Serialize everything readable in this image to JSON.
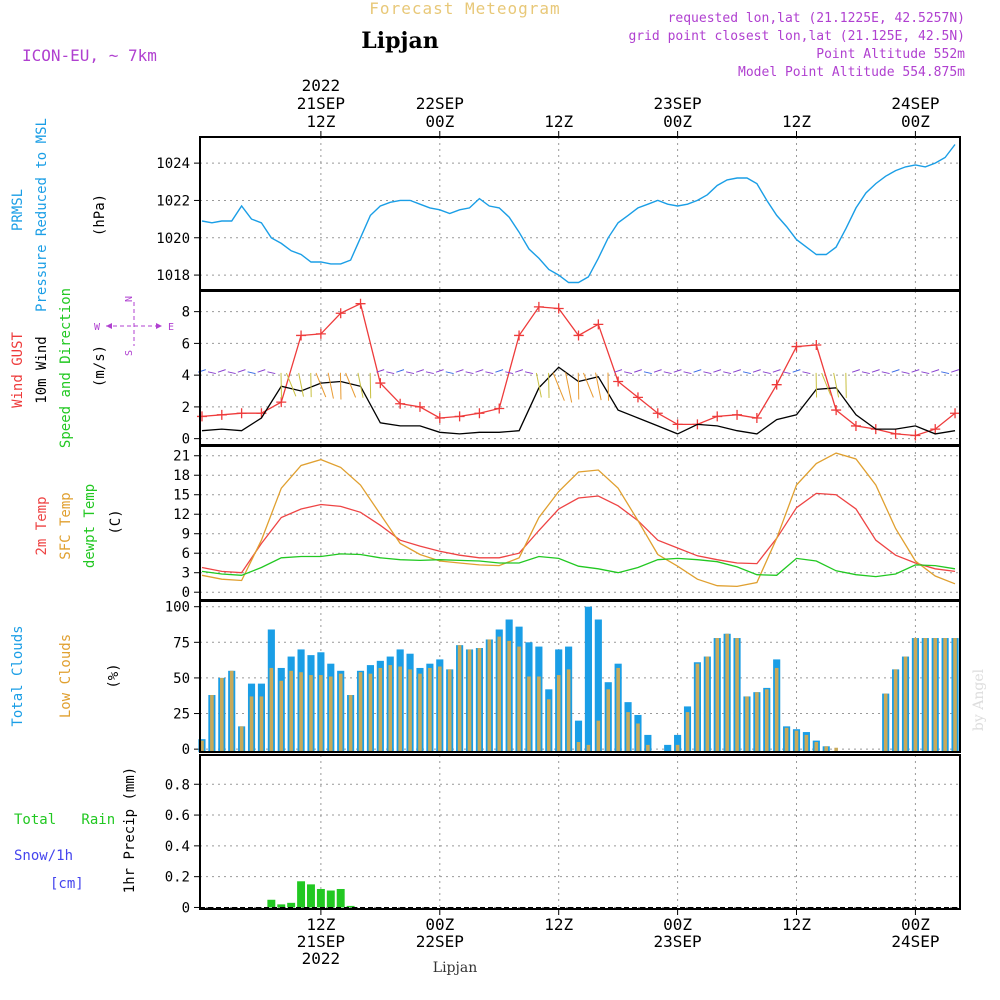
{
  "header": {
    "title": "Forecast Meteogram",
    "location": "Lipjan",
    "model": "ICON-EU,  ~ 7km",
    "requested": "requested lon,lat (21.1225E, 42.5257N)",
    "gridpoint": "grid point closest lon,lat (21.125E, 42.5N)",
    "altitude": "Point Altitude 552m",
    "model_altitude": "Model Point Altitude 554.875m",
    "footer_location": "Lipjan",
    "credit": "by Angel"
  },
  "colors": {
    "pressure": "#1a9ee6",
    "gust": "#ee3b3b",
    "wind": "#000000",
    "temp2m": "#ee4444",
    "sfc": "#e0a030",
    "dewpt": "#22c822",
    "total_clouds": "#1a9ee6",
    "low_clouds": "#c8aa5a",
    "rain": "#22c822",
    "snow": "#4444ee",
    "title": "#e8c878",
    "info": "#b040d0"
  },
  "time_axis": {
    "top": [
      {
        "t": 12,
        "lines": [
          "2022",
          "21SEP",
          "12Z"
        ]
      },
      {
        "t": 24,
        "lines": [
          "22SEP",
          "00Z"
        ]
      },
      {
        "t": 36,
        "lines": [
          "12Z"
        ]
      },
      {
        "t": 48,
        "lines": [
          "23SEP",
          "00Z"
        ]
      },
      {
        "t": 60,
        "lines": [
          "12Z"
        ]
      },
      {
        "t": 72,
        "lines": [
          "24SEP",
          "00Z"
        ]
      }
    ],
    "bottom": [
      {
        "t": 12,
        "lines": [
          "12Z",
          "21SEP",
          "2022"
        ]
      },
      {
        "t": 24,
        "lines": [
          "00Z",
          "22SEP"
        ]
      },
      {
        "t": 36,
        "lines": [
          "12Z"
        ]
      },
      {
        "t": 48,
        "lines": [
          "00Z",
          "23SEP"
        ]
      },
      {
        "t": 60,
        "lines": [
          "12Z"
        ]
      },
      {
        "t": 72,
        "lines": [
          "00Z",
          "24SEP"
        ]
      }
    ]
  },
  "panel_labels": {
    "pressure": {
      "name1": "PRMSL",
      "name2": "Pressure Reduced to MSL",
      "unit": "(hPa)"
    },
    "wind": {
      "gust": "Wind GUST",
      "wind": "10m Wind",
      "dir": "Speed and Direction",
      "unit": "(m/s)",
      "compass_n": "N",
      "compass_s": "S",
      "compass_w": "W",
      "compass_e": "E"
    },
    "temp": {
      "t2m": "2m Temp",
      "sfc": "SFC Temp",
      "dew": "dewpt Temp",
      "unit": "(C)"
    },
    "clouds": {
      "total": "Total Clouds",
      "low": "Low Clouds",
      "unit": "(%)"
    },
    "precip": {
      "rain": "Total   Rain",
      "snow": "Snow/1h",
      "snow_unit": "[cm]",
      "axis": "1hr Precip (mm)"
    }
  },
  "chart_data": [
    {
      "type": "line",
      "panel": "pressure",
      "ylim": [
        1017.2,
        1025.4
      ],
      "yticks": [
        1018,
        1020,
        1022,
        1024
      ],
      "grid": true,
      "x": [
        0,
        1,
        2,
        3,
        4,
        5,
        6,
        7,
        8,
        9,
        10,
        11,
        12,
        13,
        14,
        15,
        16,
        17,
        18,
        19,
        20,
        21,
        22,
        23,
        24,
        25,
        26,
        27,
        28,
        29,
        30,
        31,
        32,
        33,
        34,
        35,
        36,
        37,
        38,
        39,
        40,
        41,
        42,
        43,
        44,
        45,
        46,
        47,
        48,
        49,
        50,
        51,
        52,
        53,
        54,
        55,
        56,
        57,
        58,
        59,
        60,
        61,
        62,
        63,
        64,
        65,
        66,
        67,
        68,
        69,
        70,
        71,
        72,
        73,
        74,
        75,
        76
      ],
      "series": [
        {
          "values": [
            1020.9,
            1020.8,
            1020.9,
            1020.9,
            1021.7,
            1021.0,
            1020.8,
            1020.0,
            1019.7,
            1019.3,
            1019.1,
            1018.7,
            1018.7,
            1018.6,
            1018.6,
            1018.8,
            1020.0,
            1021.2,
            1021.7,
            1021.9,
            1022.0,
            1022.0,
            1021.8,
            1021.6,
            1021.5,
            1021.3,
            1021.5,
            1021.6,
            1022.1,
            1021.7,
            1021.6,
            1021.1,
            1020.3,
            1019.4,
            1018.9,
            1018.3,
            1018.0,
            1017.6,
            1017.6,
            1017.9,
            1018.9,
            1020.0,
            1020.8,
            1021.2,
            1021.6,
            1021.8,
            1022.0,
            1021.8,
            1021.7,
            1021.8,
            1022.0,
            1022.3,
            1022.8,
            1023.1,
            1023.2,
            1023.2,
            1022.9,
            1022.0,
            1021.2,
            1020.6,
            1019.9,
            1019.5,
            1019.1,
            1019.1,
            1019.5,
            1020.5,
            1021.6,
            1022.4,
            1022.9,
            1023.3,
            1023.6,
            1023.8,
            1023.9,
            1023.8,
            1024.0,
            1024.3,
            1025.0
          ]
        }
      ]
    },
    {
      "type": "line",
      "panel": "wind",
      "ylim": [
        -0.4,
        9.3
      ],
      "yticks": [
        0,
        2,
        4,
        6,
        8
      ],
      "grid": true,
      "x": [
        0,
        2,
        4,
        6,
        8,
        10,
        12,
        14,
        16,
        18,
        20,
        22,
        24,
        26,
        28,
        30,
        32,
        34,
        36,
        38,
        40,
        42,
        44,
        46,
        48,
        50,
        52,
        54,
        56,
        58,
        60,
        62,
        64,
        66,
        68,
        70,
        72,
        74,
        76
      ],
      "series": [
        {
          "name": "Wind GUST",
          "values": [
            1.4,
            1.5,
            1.6,
            1.6,
            2.3,
            6.5,
            6.6,
            7.9,
            8.5,
            3.5,
            2.2,
            2.0,
            1.3,
            1.4,
            1.6,
            1.9,
            6.5,
            8.3,
            8.2,
            6.5,
            7.2,
            3.6,
            2.6,
            1.6,
            0.9,
            0.9,
            1.4,
            1.5,
            1.3,
            3.4,
            5.8,
            5.9,
            1.8,
            0.8,
            0.6,
            0.3,
            0.2,
            0.6,
            1.6
          ]
        },
        {
          "name": "10m Wind",
          "values": [
            0.5,
            0.6,
            0.5,
            1.3,
            3.3,
            3.0,
            3.5,
            3.6,
            3.3,
            1.0,
            0.8,
            0.8,
            0.4,
            0.3,
            0.4,
            0.4,
            0.5,
            3.2,
            4.5,
            3.6,
            3.9,
            1.8,
            1.3,
            0.8,
            0.3,
            0.9,
            0.8,
            0.5,
            0.3,
            1.2,
            1.5,
            3.1,
            3.2,
            1.5,
            0.6,
            0.6,
            0.8,
            0.3,
            0.5
          ]
        }
      ]
    },
    {
      "type": "line",
      "panel": "temperature",
      "ylim": [
        -1.2,
        22.5
      ],
      "yticks": [
        0,
        3,
        6,
        9,
        12,
        15,
        18,
        21
      ],
      "grid": true,
      "x": [
        0,
        2,
        4,
        6,
        8,
        10,
        12,
        14,
        16,
        18,
        20,
        22,
        24,
        26,
        28,
        30,
        32,
        34,
        36,
        38,
        40,
        42,
        44,
        46,
        48,
        50,
        52,
        54,
        56,
        58,
        60,
        62,
        64,
        66,
        68,
        70,
        72,
        74,
        76
      ],
      "series": [
        {
          "name": "2m Temp",
          "values": [
            3.8,
            3.2,
            3.0,
            7.5,
            11.5,
            12.8,
            13.5,
            13.2,
            12.3,
            10.3,
            8.0,
            7.1,
            6.3,
            5.7,
            5.3,
            5.3,
            6.0,
            9.5,
            12.8,
            14.5,
            14.8,
            13.3,
            11.0,
            8.0,
            6.8,
            5.6,
            5.0,
            4.5,
            4.4,
            8.3,
            13.0,
            15.2,
            15.0,
            12.8,
            8.0,
            5.7,
            4.5,
            3.6,
            3.2
          ]
        },
        {
          "name": "SFC Temp",
          "values": [
            2.6,
            2.0,
            1.8,
            8.0,
            16.0,
            19.5,
            20.4,
            19.2,
            16.5,
            12.0,
            7.5,
            5.8,
            4.8,
            4.5,
            4.2,
            4.1,
            5.3,
            11.5,
            15.5,
            18.5,
            18.8,
            16.0,
            11.0,
            5.8,
            4.0,
            2.0,
            1.0,
            0.9,
            1.5,
            8.3,
            16.5,
            19.8,
            21.4,
            20.5,
            16.5,
            9.8,
            4.8,
            2.5,
            1.3
          ]
        },
        {
          "name": "dewpt Temp",
          "values": [
            3.2,
            2.8,
            2.6,
            3.8,
            5.3,
            5.5,
            5.5,
            5.9,
            5.8,
            5.3,
            5.0,
            4.9,
            5.0,
            4.9,
            4.8,
            4.5,
            4.5,
            5.5,
            5.2,
            4.0,
            3.6,
            3.0,
            3.8,
            5.0,
            5.2,
            5.0,
            4.7,
            3.9,
            2.7,
            2.6,
            5.2,
            4.8,
            3.3,
            2.7,
            2.4,
            2.8,
            4.2,
            4.1,
            3.6
          ]
        }
      ]
    },
    {
      "type": "bar",
      "panel": "clouds",
      "ylim": [
        -2,
        104
      ],
      "yticks": [
        0,
        25,
        50,
        75,
        100
      ],
      "grid": true,
      "x": [
        0,
        1,
        2,
        3,
        4,
        5,
        6,
        7,
        8,
        9,
        10,
        11,
        12,
        13,
        14,
        15,
        16,
        17,
        18,
        19,
        20,
        21,
        22,
        23,
        24,
        25,
        26,
        27,
        28,
        29,
        30,
        31,
        32,
        33,
        34,
        35,
        36,
        37,
        38,
        39,
        40,
        41,
        42,
        43,
        44,
        45,
        46,
        47,
        48,
        49,
        50,
        51,
        52,
        53,
        54,
        55,
        56,
        57,
        58,
        59,
        60,
        61,
        62,
        63,
        64,
        65,
        66,
        67,
        68,
        69,
        70,
        71,
        72,
        73,
        74,
        75,
        76
      ],
      "series": [
        {
          "name": "Total Clouds",
          "values": [
            7,
            38,
            50,
            55,
            16,
            46,
            46,
            84,
            57,
            65,
            70,
            66,
            68,
            60,
            55,
            38,
            55,
            59,
            62,
            65,
            70,
            67,
            57,
            60,
            63,
            56,
            73,
            70,
            71,
            77,
            84,
            91,
            86,
            75,
            72,
            42,
            70,
            72,
            20,
            100,
            91,
            47,
            60,
            33,
            24,
            10,
            0,
            3,
            10,
            30,
            61,
            65,
            78,
            81,
            78,
            37,
            40,
            43,
            63,
            16,
            14,
            12,
            6,
            2,
            0,
            0,
            0,
            0,
            0,
            39,
            56,
            65,
            78,
            78,
            78,
            78,
            78
          ]
        },
        {
          "name": "Low Clouds",
          "values": [
            6,
            38,
            50,
            55,
            16,
            37,
            37,
            57,
            48,
            55,
            54,
            52,
            52,
            51,
            53,
            38,
            54,
            53,
            57,
            59,
            58,
            56,
            53,
            57,
            58,
            56,
            73,
            70,
            71,
            77,
            79,
            76,
            72,
            51,
            51,
            35,
            52,
            56,
            5,
            3,
            20,
            42,
            57,
            26,
            18,
            3,
            0,
            0,
            3,
            26,
            60,
            65,
            78,
            81,
            78,
            37,
            40,
            42,
            57,
            15,
            13,
            10,
            5,
            2,
            1,
            0,
            0,
            0,
            0,
            39,
            56,
            65,
            78,
            78,
            78,
            78,
            78
          ]
        }
      ]
    },
    {
      "type": "bar",
      "panel": "precip",
      "ylim": [
        -0.01,
        0.99
      ],
      "yticks": [
        0,
        0.2,
        0.4,
        0.6,
        0.8
      ],
      "grid": true,
      "x": [
        7,
        8,
        9,
        10,
        11,
        12,
        13,
        14,
        15
      ],
      "series": [
        {
          "name": "Total Rain",
          "values": [
            0.05,
            0.02,
            0.03,
            0.17,
            0.15,
            0.12,
            0.11,
            0.12,
            0.01
          ]
        }
      ]
    }
  ]
}
